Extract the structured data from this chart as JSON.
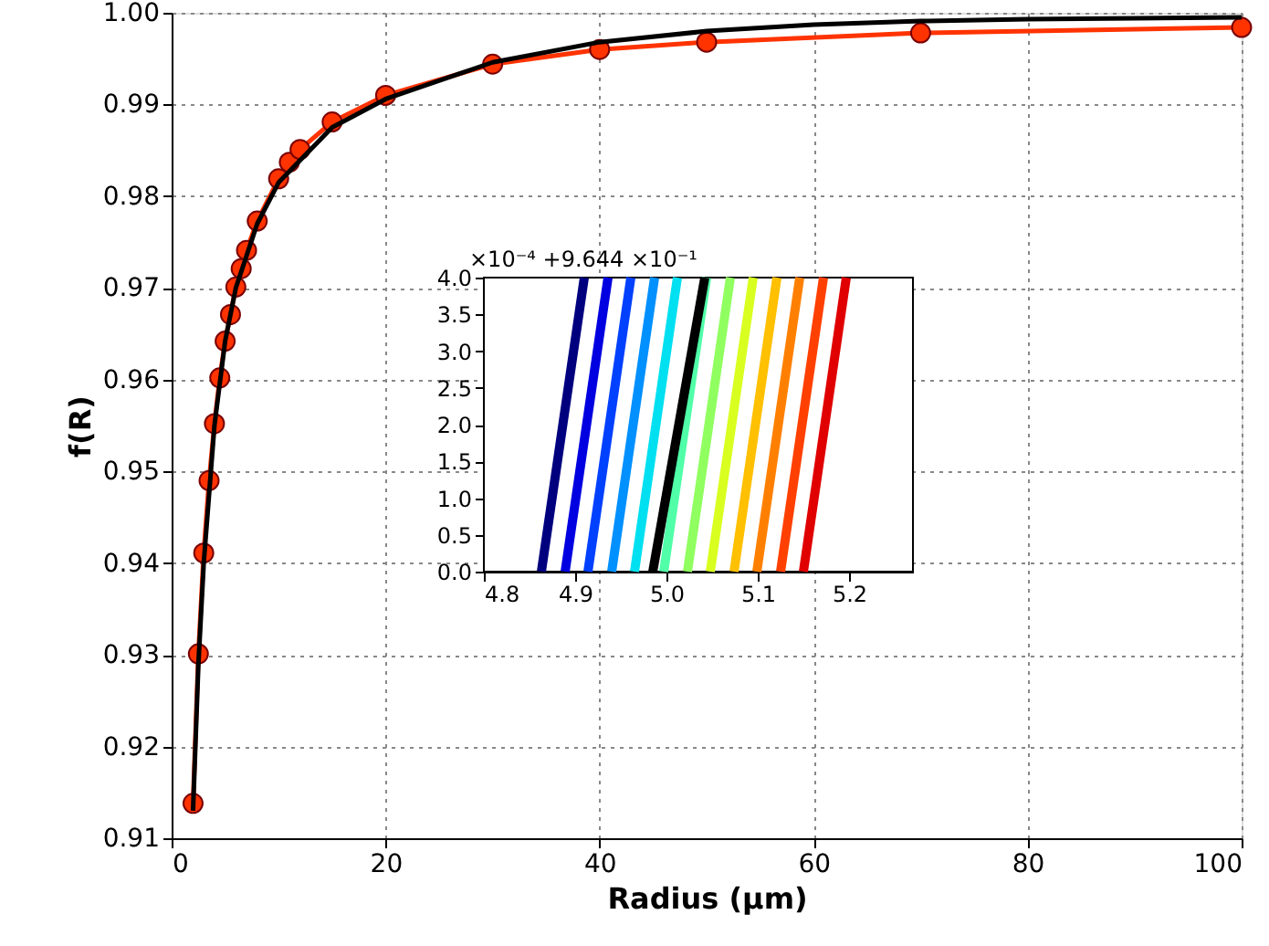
{
  "chart_data": [
    {
      "type": "line",
      "xlabel": "Radius (μm)",
      "ylabel": "f(R)",
      "xlim": [
        0,
        100
      ],
      "ylim": [
        0.91,
        1.0
      ],
      "xticks": [
        0,
        20,
        40,
        60,
        80,
        100
      ],
      "yticks": [
        0.91,
        0.92,
        0.93,
        0.94,
        0.95,
        0.96,
        0.97,
        0.98,
        0.99,
        {
          "value": 1.0,
          "label": "1.00"
        }
      ],
      "grid": true,
      "series": [
        {
          "type": "line",
          "color": "#ff3300",
          "marker": "circle",
          "x": [
            2,
            2.5,
            3,
            3.5,
            4,
            4.5,
            5,
            5.5,
            6,
            6.5,
            7,
            8,
            10,
            11,
            12,
            15,
            20,
            30,
            40,
            50,
            70,
            100
          ],
          "values": [
            0.9138,
            0.9301,
            0.9411,
            0.949,
            0.9552,
            0.9602,
            0.9642,
            0.9671,
            0.9701,
            0.9721,
            0.9741,
            0.9773,
            0.9819,
            0.9837,
            0.9851,
            0.9881,
            0.991,
            0.9944,
            0.996,
            0.9968,
            0.9978,
            0.9984
          ]
        },
        {
          "type": "line",
          "color": "#000000",
          "marker": "none",
          "x": [
            2,
            2.5,
            3,
            4,
            5,
            6,
            8,
            10,
            15,
            20,
            30,
            40,
            50,
            60,
            70,
            80,
            100
          ],
          "values": [
            0.913,
            0.929,
            0.94,
            0.955,
            0.9642,
            0.97,
            0.977,
            0.9815,
            0.9875,
            0.9906,
            0.9946,
            0.9968,
            0.998,
            0.9987,
            0.9991,
            0.9993,
            0.9995
          ]
        }
      ]
    },
    {
      "type": "line",
      "xlim": [
        4.8,
        5.27
      ],
      "ylim": [
        0,
        4.0
      ],
      "xticks": [
        4.8,
        4.9,
        {
          "value": 5.0,
          "label": "5.0"
        },
        5.1,
        5.2
      ],
      "yticks": [
        {
          "value": 0,
          "label": "0.0"
        },
        0.5,
        {
          "value": 1,
          "label": "1.0"
        },
        1.5,
        {
          "value": 2,
          "label": "2.0"
        },
        2.5,
        {
          "value": 3,
          "label": "3.0"
        },
        3.5,
        {
          "value": 4,
          "label": "4.0"
        }
      ],
      "annotations": [
        "×10⁻⁴ +9.644 ×10⁻¹"
      ],
      "series": [
        {
          "color": "#00007f",
          "x": [
            4.863,
            4.91
          ],
          "values": [
            0,
            4
          ]
        },
        {
          "color": "#0000e0",
          "x": [
            4.889,
            4.936
          ],
          "values": [
            0,
            4
          ]
        },
        {
          "color": "#0040ff",
          "x": [
            4.914,
            4.961
          ],
          "values": [
            0,
            4
          ]
        },
        {
          "color": "#0090ff",
          "x": [
            4.94,
            4.987
          ],
          "values": [
            0,
            4
          ]
        },
        {
          "color": "#00e0f0",
          "x": [
            4.965,
            5.012
          ],
          "values": [
            0,
            4
          ]
        },
        {
          "color": "#50ffa8",
          "x": [
            4.997,
            5.044
          ],
          "values": [
            0,
            4
          ]
        },
        {
          "color": "#90ff60",
          "x": [
            5.023,
            5.07
          ],
          "values": [
            0,
            4
          ]
        },
        {
          "color": "#d8ff20",
          "x": [
            5.048,
            5.095
          ],
          "values": [
            0,
            4
          ]
        },
        {
          "color": "#ffc000",
          "x": [
            5.074,
            5.121
          ],
          "values": [
            0,
            4
          ]
        },
        {
          "color": "#ff8000",
          "x": [
            5.099,
            5.146
          ],
          "values": [
            0,
            4
          ]
        },
        {
          "color": "#ff4000",
          "x": [
            5.125,
            5.172
          ],
          "values": [
            0,
            4
          ]
        },
        {
          "color": "#e00000",
          "x": [
            5.15,
            5.197
          ],
          "values": [
            0,
            4
          ]
        },
        {
          "color": "#000000",
          "x": [
            4.985,
            5.042
          ],
          "values": [
            0,
            4
          ]
        }
      ]
    }
  ]
}
